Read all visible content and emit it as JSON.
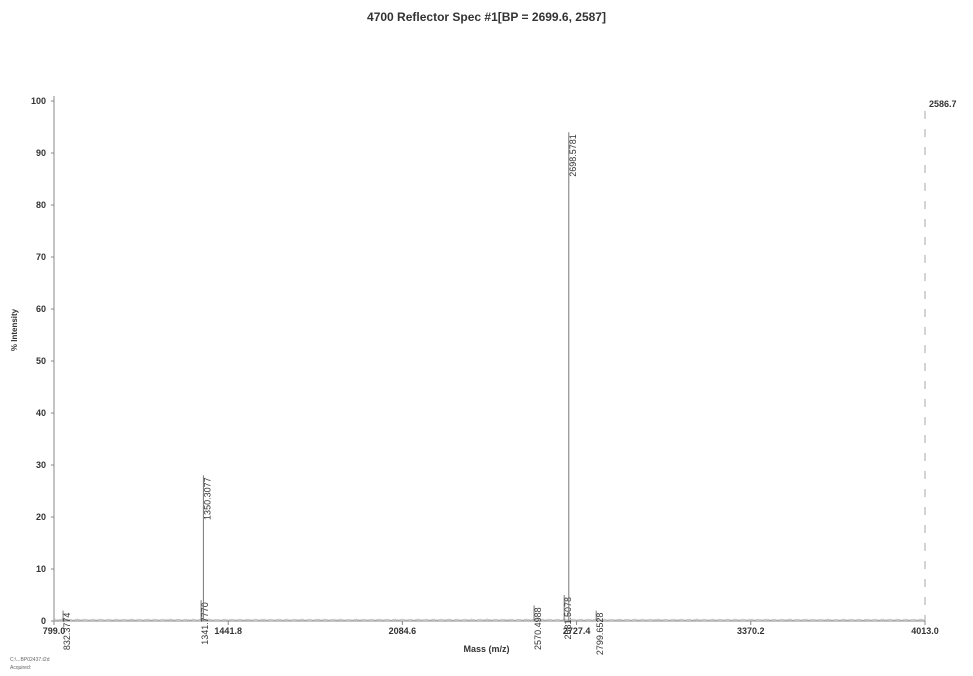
{
  "chart_data": {
    "type": "line",
    "title": "4700 Reflector Spec #1[BP = 2699.6, 2587]",
    "xlabel": "Mass (m/z)",
    "ylabel": "% Intensity",
    "xlim": [
      799.0,
      4013.0
    ],
    "ylim": [
      0,
      100
    ],
    "x_ticks": [
      "799.0",
      "1441.8",
      "2084.6",
      "2727.4",
      "3370.2",
      "4013.0"
    ],
    "y_ticks": [
      "0",
      "10",
      "20",
      "30",
      "40",
      "50",
      "60",
      "70",
      "80",
      "90",
      "100"
    ],
    "max_label": "2586.7",
    "grid": false,
    "peaks": [
      {
        "mass": 832.3774,
        "intensity": 2,
        "label": "832.3774"
      },
      {
        "mass": 1341.777,
        "intensity": 4,
        "label": "1341.7770"
      },
      {
        "mass": 1350.3077,
        "intensity": 28,
        "label": "1350.3077"
      },
      {
        "mass": 2570.4988,
        "intensity": 3,
        "label": "2570.4988"
      },
      {
        "mass": 2681.5078,
        "intensity": 5,
        "label": "2681.5078"
      },
      {
        "mass": 2698.5781,
        "intensity": 94,
        "label": "2698.5781"
      },
      {
        "mass": 2799.6528,
        "intensity": 2,
        "label": "2799.6528"
      }
    ]
  },
  "footer": {
    "line1": "C:\\...BP02437.t2d",
    "line2": "Acquired:"
  }
}
